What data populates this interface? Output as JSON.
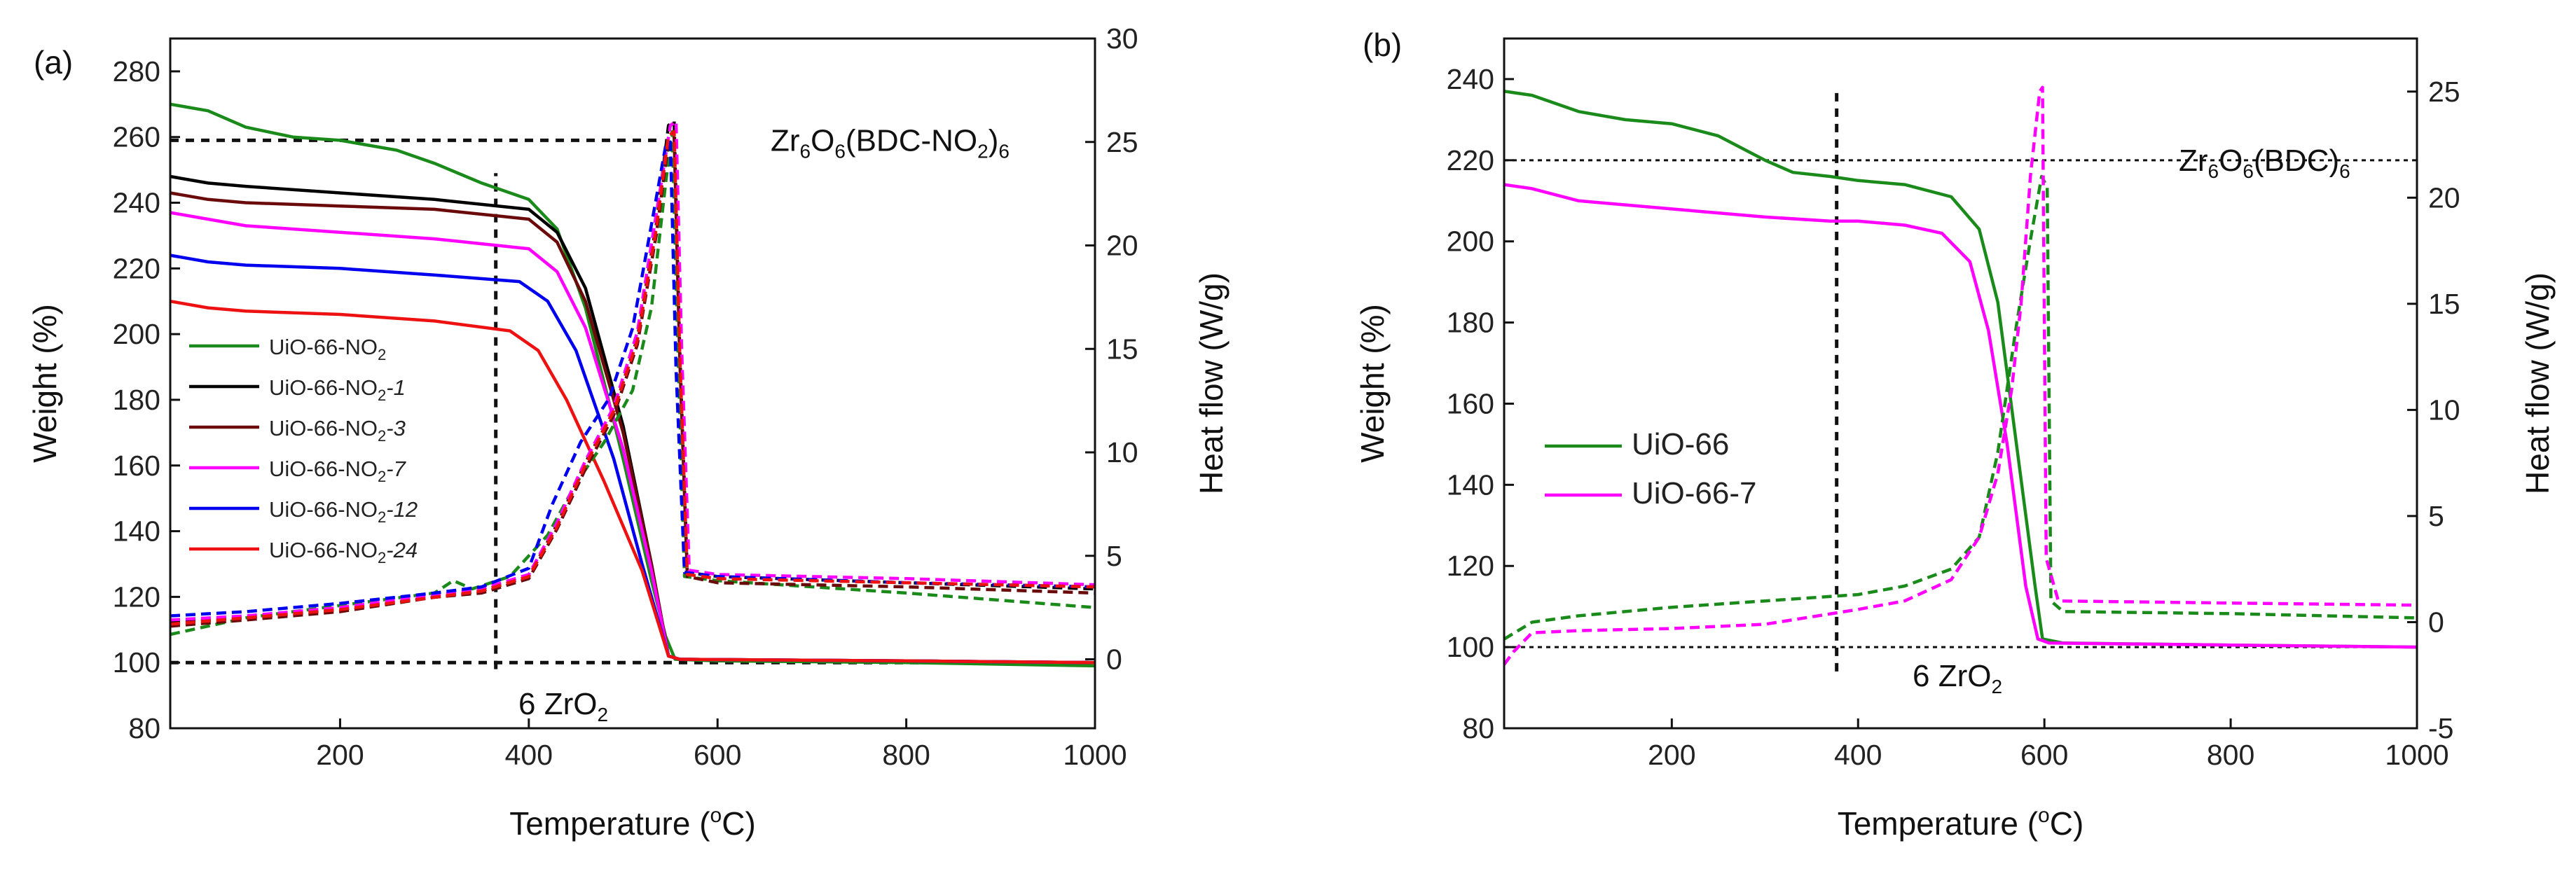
{
  "colors": {
    "UiO-66-NO2": "#1a8a1a",
    "UiO-66-NO2-1": "#000000",
    "UiO-66-NO2-3": "#6b0a0a",
    "UiO-66-NO2-7": "#ff00ff",
    "UiO-66-NO2-12": "#0000ee",
    "UiO-66-NO2-24": "#ee1111",
    "UiO-66": "#1a8a1a",
    "UiO-66-7": "#ff00ff"
  },
  "chart_data": [
    {
      "panel": "(a)",
      "type": "line",
      "xlabel": {
        "main": "Temperature (",
        "sup": "o",
        "end": "C)"
      },
      "ylabel": "Weight (%)",
      "y2label": "Heat flow (W/g)",
      "xlim": [
        20,
        1000
      ],
      "ylim": [
        80,
        290
      ],
      "y2lim": [
        -3.333,
        30
      ],
      "xticks": [
        200,
        400,
        600,
        800,
        1000
      ],
      "yticks": [
        80,
        100,
        120,
        140,
        160,
        180,
        200,
        220,
        240,
        260,
        280
      ],
      "y2ticks": [
        0,
        5,
        10,
        15,
        20,
        25,
        30
      ],
      "reference_lines": [
        {
          "type": "hline",
          "y": 259,
          "x0": 20,
          "x1": 540,
          "label_parts": [
            "Zr",
            "6",
            "O",
            "6",
            "(BDC-NO",
            "2",
            ")",
            "6"
          ]
        },
        {
          "type": "hline",
          "y": 100,
          "x0": 20,
          "x1": 1000,
          "label_parts": [
            "6 ZrO",
            "2"
          ]
        },
        {
          "type": "vline",
          "x": 365,
          "y0": 98,
          "y1": 249
        }
      ],
      "legend": {
        "position": "middle-left",
        "entries": [
          {
            "base": "UiO-66-NO",
            "sub": "2",
            "suffix": ""
          },
          {
            "base": "UiO-66-NO",
            "sub": "2",
            "suffix": "-1"
          },
          {
            "base": "UiO-66-NO",
            "sub": "2",
            "suffix": "-3"
          },
          {
            "base": "UiO-66-NO",
            "sub": "2",
            "suffix": "-7"
          },
          {
            "base": "UiO-66-NO",
            "sub": "2",
            "suffix": "-12"
          },
          {
            "base": "UiO-66-NO",
            "sub": "2",
            "suffix": "-24"
          }
        ]
      },
      "series": [
        {
          "name": "UiO-66-NO2",
          "axis": "weight",
          "style": "solid",
          "x": [
            20,
            60,
            100,
            150,
            200,
            260,
            300,
            350,
            400,
            430,
            460,
            500,
            530,
            545,
            555,
            600,
            800,
            1000
          ],
          "y": [
            270,
            268,
            263,
            260,
            259,
            256,
            252,
            246,
            241,
            232,
            208,
            162,
            125,
            108,
            101,
            100.5,
            100,
            99
          ]
        },
        {
          "name": "UiO-66-NO2-1",
          "axis": "weight",
          "style": "solid",
          "x": [
            20,
            60,
            100,
            200,
            300,
            400,
            430,
            460,
            500,
            530,
            548,
            560,
            800,
            1000
          ],
          "y": [
            248,
            246,
            245,
            243,
            241,
            238,
            231,
            214,
            172,
            130,
            102,
            101,
            100.5,
            100
          ]
        },
        {
          "name": "UiO-66-NO2-3",
          "axis": "weight",
          "style": "solid",
          "x": [
            20,
            60,
            100,
            200,
            300,
            400,
            430,
            460,
            500,
            530,
            548,
            560,
            800,
            1000
          ],
          "y": [
            243,
            241,
            240,
            239,
            238,
            235,
            228,
            210,
            170,
            130,
            102,
            101,
            100.5,
            100
          ]
        },
        {
          "name": "UiO-66-NO2-7",
          "axis": "weight",
          "style": "solid",
          "x": [
            20,
            60,
            100,
            200,
            300,
            400,
            430,
            460,
            500,
            530,
            548,
            560,
            800,
            1000
          ],
          "y": [
            237,
            235,
            233,
            231,
            229,
            226,
            219,
            202,
            165,
            128,
            102,
            101,
            100.5,
            100
          ]
        },
        {
          "name": "UiO-66-NO2-12",
          "axis": "weight",
          "style": "solid",
          "x": [
            20,
            60,
            100,
            200,
            300,
            390,
            420,
            450,
            490,
            520,
            548,
            560,
            800,
            1000
          ],
          "y": [
            224,
            222,
            221,
            220,
            218,
            216,
            210,
            195,
            162,
            130,
            102,
            101,
            100.5,
            100
          ]
        },
        {
          "name": "UiO-66-NO2-24",
          "axis": "weight",
          "style": "solid",
          "x": [
            20,
            60,
            100,
            200,
            300,
            380,
            410,
            440,
            480,
            520,
            548,
            560,
            800,
            1000
          ],
          "y": [
            210,
            208,
            207,
            206,
            204,
            201,
            195,
            180,
            155,
            128,
            102,
            101,
            100.5,
            100
          ]
        },
        {
          "name": "UiO-66-NO2",
          "axis": "heat",
          "style": "dashed",
          "x": [
            20,
            100,
            200,
            300,
            320,
            340,
            380,
            420,
            450,
            480,
            510,
            530,
            545,
            552,
            558,
            565,
            600,
            800,
            1000
          ],
          "y": [
            1.2,
            2.0,
            2.6,
            3.2,
            3.8,
            3.4,
            4.0,
            6.0,
            8.5,
            10.5,
            13.0,
            17.0,
            23.0,
            25.5,
            15.0,
            4.0,
            3.8,
            3.2,
            2.5
          ]
        },
        {
          "name": "UiO-66-NO2-1",
          "axis": "heat",
          "style": "dashed",
          "x": [
            20,
            100,
            200,
            300,
            350,
            400,
            430,
            460,
            490,
            515,
            535,
            548,
            554,
            560,
            568,
            600,
            800,
            1000
          ],
          "y": [
            1.8,
            2.0,
            2.4,
            3.0,
            3.3,
            4.0,
            6.5,
            9.5,
            12.0,
            15.5,
            21.0,
            25.8,
            26.0,
            15.0,
            4.2,
            4.0,
            3.7,
            3.4
          ]
        },
        {
          "name": "UiO-66-NO2-3",
          "axis": "heat",
          "style": "dashed",
          "x": [
            20,
            100,
            200,
            300,
            350,
            400,
            430,
            460,
            490,
            515,
            535,
            548,
            554,
            560,
            568,
            600,
            800,
            1000
          ],
          "y": [
            1.6,
            1.9,
            2.3,
            3.0,
            3.2,
            3.9,
            6.3,
            9.2,
            11.8,
            15.2,
            20.5,
            25.0,
            25.2,
            14.5,
            4.0,
            3.7,
            3.5,
            3.2
          ]
        },
        {
          "name": "UiO-66-NO2-7",
          "axis": "heat",
          "style": "dashed",
          "x": [
            20,
            100,
            200,
            300,
            350,
            400,
            430,
            460,
            490,
            515,
            535,
            550,
            556,
            562,
            570,
            600,
            800,
            1000
          ],
          "y": [
            1.9,
            2.1,
            2.5,
            3.1,
            3.4,
            4.1,
            6.6,
            9.6,
            12.2,
            15.8,
            21.5,
            25.8,
            26.0,
            15.0,
            4.3,
            4.1,
            3.9,
            3.6
          ]
        },
        {
          "name": "UiO-66-NO2-12",
          "axis": "heat",
          "style": "dashed",
          "x": [
            20,
            100,
            200,
            300,
            350,
            400,
            425,
            455,
            485,
            510,
            530,
            545,
            550,
            556,
            565,
            600,
            800,
            1000
          ],
          "y": [
            2.1,
            2.3,
            2.7,
            3.2,
            3.5,
            4.4,
            7.5,
            10.5,
            12.6,
            16.0,
            21.0,
            24.8,
            25.0,
            14.0,
            4.2,
            4.0,
            3.7,
            3.5
          ]
        },
        {
          "name": "UiO-66-NO2-24",
          "axis": "heat",
          "style": "dashed",
          "x": [
            20,
            100,
            200,
            300,
            350,
            400,
            430,
            460,
            490,
            515,
            535,
            548,
            554,
            560,
            568,
            600,
            800,
            1000
          ],
          "y": [
            1.7,
            2.0,
            2.4,
            3.0,
            3.3,
            4.0,
            6.4,
            9.4,
            12.0,
            15.4,
            20.8,
            25.3,
            25.5,
            14.8,
            4.1,
            3.9,
            3.7,
            3.5
          ]
        }
      ]
    },
    {
      "panel": "(b)",
      "type": "line",
      "xlabel": {
        "main": "Temperature (",
        "sup": "o",
        "end": "C)"
      },
      "ylabel": "Weight (%)",
      "y2label": "Heat flow (W/g)",
      "xlim": [
        20,
        1000
      ],
      "ylim": [
        80,
        250
      ],
      "y2lim": [
        -5,
        27.5
      ],
      "xticks": [
        200,
        400,
        600,
        800,
        1000
      ],
      "yticks": [
        80,
        100,
        120,
        140,
        160,
        180,
        200,
        220,
        240
      ],
      "y2ticks": [
        -5,
        0,
        5,
        10,
        15,
        20,
        25
      ],
      "reference_lines": [
        {
          "type": "hline",
          "y": 220,
          "x0": 20,
          "x1": 1000,
          "label_parts": [
            "Zr",
            "6",
            "O",
            "6",
            "(BDC)",
            "6"
          ]
        },
        {
          "type": "hline",
          "y": 100,
          "x0": 20,
          "x1": 1000,
          "label_parts": [
            "6 ZrO",
            "2"
          ]
        },
        {
          "type": "vline",
          "x": 377,
          "y0": 94,
          "y1": 238
        }
      ],
      "legend": {
        "position": "middle-left",
        "entries": [
          {
            "base": "UiO-66",
            "sub": "",
            "suffix": ""
          },
          {
            "base": "UiO-66-7",
            "sub": "",
            "suffix": ""
          }
        ]
      },
      "series": [
        {
          "name": "UiO-66",
          "axis": "weight",
          "style": "solid",
          "x": [
            20,
            50,
            100,
            150,
            200,
            250,
            300,
            330,
            370,
            400,
            450,
            500,
            530,
            550,
            570,
            590,
            598,
            620,
            800,
            1000
          ],
          "y": [
            237,
            236,
            232,
            230,
            229,
            226,
            220,
            217,
            216,
            215,
            214,
            211,
            203,
            185,
            150,
            115,
            102,
            101,
            100.5,
            100
          ]
        },
        {
          "name": "UiO-66-7",
          "axis": "weight",
          "style": "solid",
          "x": [
            20,
            50,
            100,
            200,
            300,
            370,
            400,
            450,
            490,
            520,
            540,
            560,
            580,
            593,
            605,
            800,
            1000
          ],
          "y": [
            214,
            213,
            210,
            208,
            206,
            205,
            205,
            204,
            202,
            195,
            178,
            150,
            115,
            102,
            101,
            100.5,
            100
          ]
        },
        {
          "name": "UiO-66",
          "axis": "heat",
          "style": "dashed",
          "x": [
            20,
            50,
            100,
            200,
            300,
            400,
            450,
            500,
            530,
            550,
            570,
            585,
            597,
            603,
            607,
            620,
            800,
            1000
          ],
          "y": [
            -0.8,
            0.0,
            0.3,
            0.7,
            1.0,
            1.3,
            1.7,
            2.5,
            4.0,
            8.0,
            14.0,
            18.0,
            21.0,
            20.5,
            1.0,
            0.5,
            0.4,
            0.2
          ]
        },
        {
          "name": "UiO-66-7",
          "axis": "heat",
          "style": "dashed",
          "x": [
            20,
            30,
            50,
            100,
            200,
            300,
            400,
            450,
            500,
            530,
            550,
            565,
            575,
            585,
            595,
            598,
            602,
            615,
            800,
            1000
          ],
          "y": [
            -2.0,
            -1.4,
            -0.5,
            -0.4,
            -0.3,
            -0.1,
            0.6,
            1.0,
            2.0,
            4.0,
            7.0,
            11.0,
            15.0,
            21.0,
            25.0,
            25.2,
            3.0,
            1.0,
            0.9,
            0.8
          ]
        }
      ]
    }
  ]
}
